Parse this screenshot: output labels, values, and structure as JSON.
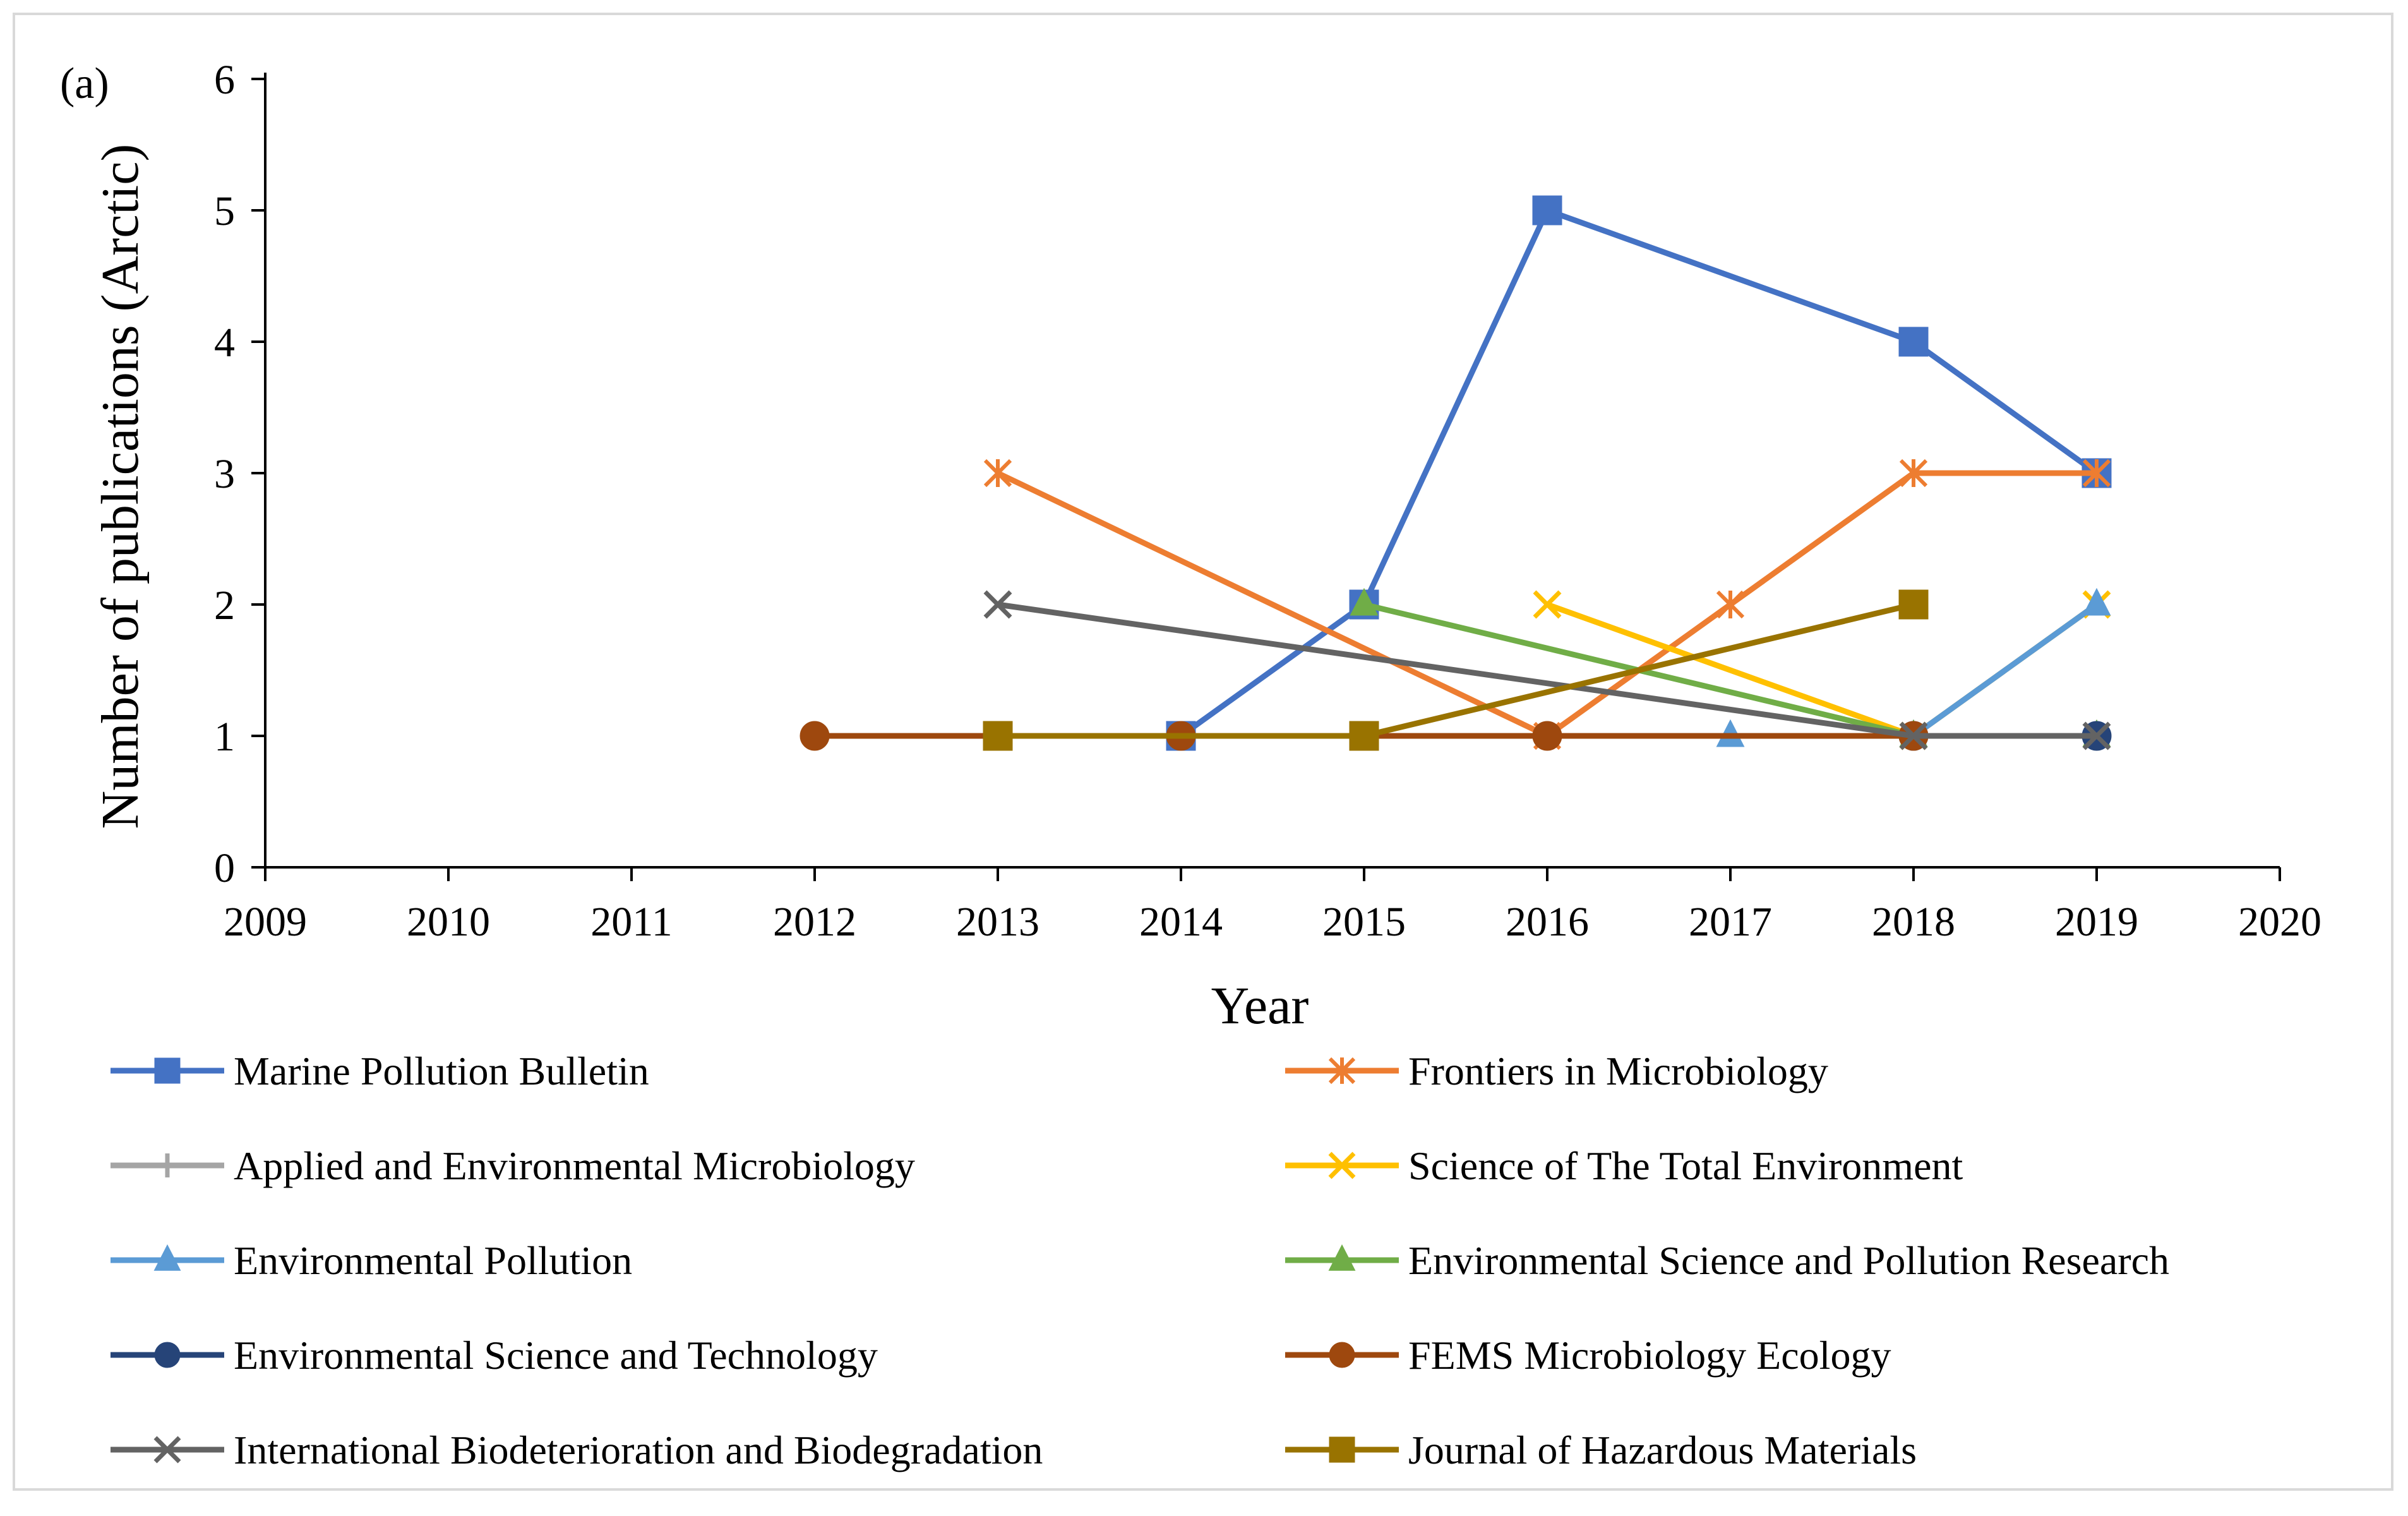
{
  "chart_data": {
    "type": "line",
    "panel_label": "(a)",
    "xlabel": "Year",
    "ylabel": "Number of publications (Arctic)",
    "xlim": [
      2009,
      2020
    ],
    "ylim": [
      0,
      6
    ],
    "xticks": [
      2009,
      2010,
      2011,
      2012,
      2013,
      2014,
      2015,
      2016,
      2017,
      2018,
      2019,
      2020
    ],
    "yticks": [
      0,
      1,
      2,
      3,
      4,
      5,
      6
    ],
    "series": [
      {
        "name": "Marine Pollution Bulletin",
        "color": "#4472c4",
        "marker": "square",
        "points": [
          [
            2014,
            1
          ],
          [
            2015,
            2
          ],
          [
            2016,
            5
          ],
          [
            2018,
            4
          ],
          [
            2019,
            3
          ]
        ]
      },
      {
        "name": "Frontiers in Microbiology",
        "color": "#ed7d31",
        "marker": "asterisk",
        "points": [
          [
            2013,
            3
          ],
          [
            2016,
            1
          ],
          [
            2017,
            2
          ],
          [
            2018,
            3
          ],
          [
            2019,
            3
          ]
        ]
      },
      {
        "name": "Applied and Environmental Microbiology",
        "color": "#a5a5a5",
        "marker": "plus",
        "points": [
          [
            2018,
            1
          ],
          [
            2019,
            1
          ]
        ]
      },
      {
        "name": "Science of The Total Environment",
        "color": "#ffc000",
        "marker": "x",
        "points": [
          [
            2016,
            2
          ],
          [
            2018,
            1
          ],
          [
            2019,
            2
          ]
        ]
      },
      {
        "name": "Environmental Pollution",
        "color": "#5b9bd5",
        "marker": "triangle",
        "points": [
          [
            2017,
            1
          ],
          [
            2018,
            1
          ],
          [
            2019,
            2
          ]
        ]
      },
      {
        "name": "Environmental Science and Pollution Research",
        "color": "#70ad47",
        "marker": "triangle",
        "points": [
          [
            2015,
            2
          ],
          [
            2018,
            1
          ],
          [
            2019,
            1
          ]
        ]
      },
      {
        "name": "Environmental Science and Technology",
        "color": "#264478",
        "marker": "circle",
        "points": [
          [
            2018,
            1
          ],
          [
            2019,
            1
          ]
        ]
      },
      {
        "name": "FEMS Microbiology Ecology",
        "color": "#9e480e",
        "marker": "circle",
        "points": [
          [
            2012,
            1
          ],
          [
            2014,
            1
          ],
          [
            2016,
            1
          ],
          [
            2018,
            1
          ]
        ]
      },
      {
        "name": "International Biodeterioration and Biodegradation",
        "color": "#636363",
        "marker": "x",
        "points": [
          [
            2013,
            2
          ],
          [
            2018,
            1
          ],
          [
            2019,
            1
          ]
        ]
      },
      {
        "name": "Journal of Hazardous Materials",
        "color": "#997300",
        "marker": "square",
        "points": [
          [
            2013,
            1
          ],
          [
            2015,
            1
          ],
          [
            2018,
            2
          ]
        ]
      }
    ],
    "legend_position": "bottom, two columns"
  }
}
